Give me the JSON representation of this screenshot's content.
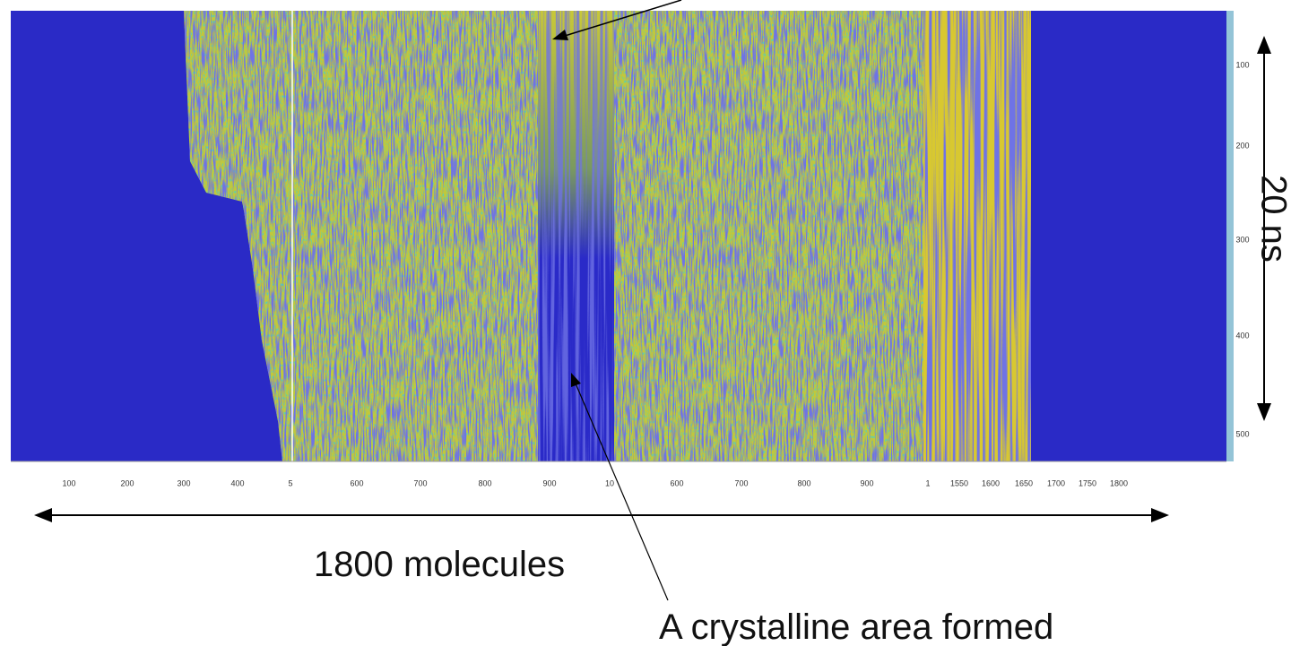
{
  "heatmap": {
    "x_tick_labels": [
      "100",
      "200",
      "300",
      "400",
      "5",
      "600",
      "700",
      "800",
      "900",
      "10",
      "600",
      "700",
      "800",
      "900",
      "1",
      "1550",
      "1600",
      "1650",
      "1700",
      "1750",
      "1800"
    ],
    "y_tick_labels": [
      "100",
      "200",
      "300",
      "400",
      "500"
    ]
  },
  "annotations": {
    "x_span": "1800 molecules",
    "y_span": "20 ns",
    "crystal": "A crystalline area formed"
  }
}
